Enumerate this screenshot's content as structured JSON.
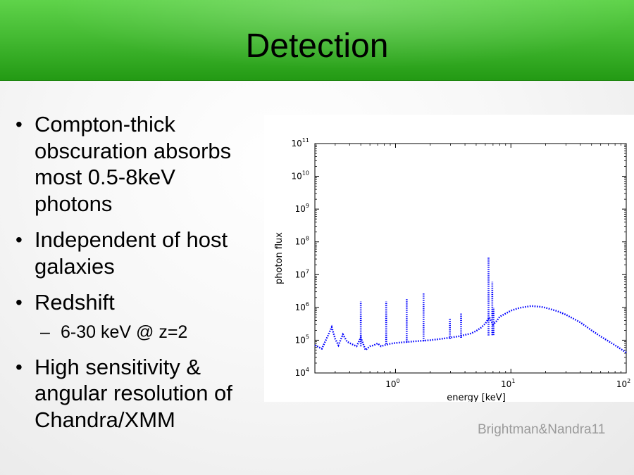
{
  "slide": {
    "title": "Detection",
    "bullets": [
      {
        "text": "Compton-thick obscuration absorbs most 0.5-8keV photons"
      },
      {
        "text": "Independent of host galaxies"
      },
      {
        "text": "Redshift",
        "sub": "6-30 keV @ z=2"
      },
      {
        "text": "High sensitivity & angular resolution of Chandra/XMM"
      }
    ],
    "credit": "Brightman&Nandra11",
    "bullet_glyph": "•",
    "dash_glyph": "–"
  },
  "colors": {
    "title_green": "#45bb33",
    "series_blue": "#0000ff",
    "credit_gray": "#9a9a9a"
  },
  "chart_data": {
    "type": "line",
    "title": "",
    "xlabel": "energy [keV]",
    "ylabel": "photon flux",
    "xscale": "log",
    "yscale": "log",
    "xlim": [
      0.2,
      100
    ],
    "ylim": [
      10000,
      100000000000
    ],
    "xticks": [
      {
        "base": "10",
        "exp": "0"
      },
      {
        "base": "10",
        "exp": "1"
      },
      {
        "base": "10",
        "exp": "2"
      }
    ],
    "yticks": [
      {
        "base": "10",
        "exp": "4"
      },
      {
        "base": "10",
        "exp": "5"
      },
      {
        "base": "10",
        "exp": "6"
      },
      {
        "base": "10",
        "exp": "7"
      },
      {
        "base": "10",
        "exp": "8"
      },
      {
        "base": "10",
        "exp": "9"
      },
      {
        "base": "10",
        "exp": "10"
      },
      {
        "base": "10",
        "exp": "11"
      }
    ],
    "line_style": "dotted",
    "grid": false,
    "series": [
      {
        "x": [
          0.2,
          0.23,
          0.26,
          0.28,
          0.3,
          0.32,
          0.35,
          0.38,
          0.42,
          0.46,
          0.5,
          0.55,
          0.6,
          0.65,
          0.7,
          0.75,
          0.8,
          0.9,
          1.0,
          1.2,
          1.5,
          1.8,
          2.0,
          2.5,
          3.0,
          3.5,
          4.0,
          4.5,
          5.0,
          5.5,
          6.0,
          6.5,
          7.0,
          7.5,
          8.0,
          9.0,
          10.0,
          12.0,
          15.0,
          18.0,
          20.0,
          25.0,
          30.0,
          40.0,
          50.0,
          60.0,
          80.0,
          100.0
        ],
        "y": [
          70000,
          55000,
          140000,
          250000,
          110000,
          70000,
          150000,
          90000,
          75000,
          65000,
          120000,
          50000,
          65000,
          70000,
          80000,
          65000,
          70000,
          78000,
          82000,
          87000,
          93000,
          97000,
          100000,
          110000,
          120000,
          130000,
          145000,
          160000,
          190000,
          240000,
          320000,
          500000,
          300000,
          380000,
          520000,
          650000,
          800000,
          980000,
          1100000,
          1050000,
          980000,
          780000,
          600000,
          350000,
          200000,
          130000,
          70000,
          42000
        ]
      },
      {
        "name": "",
        "x": [
          0.5,
          0.83,
          1.25,
          1.75,
          2.96,
          3.7,
          6.4,
          6.9,
          7.06
        ],
        "y": [
          1500000,
          1500000,
          1800000,
          2800000,
          450000,
          650000,
          35000000,
          6000000,
          1000000
        ],
        "kind": "emission-lines"
      }
    ]
  }
}
